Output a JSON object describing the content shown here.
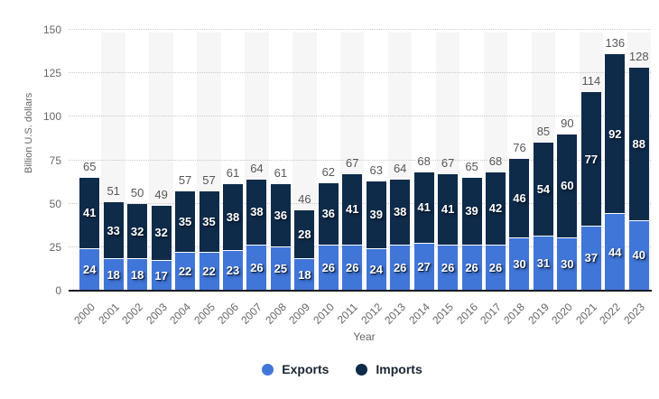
{
  "chart_data": {
    "type": "bar",
    "stacked": true,
    "title": "",
    "xlabel": "Year",
    "ylabel": "Billion U.S. dollars",
    "ylim": [
      0,
      150
    ],
    "yticks": [
      0,
      25,
      50,
      75,
      100,
      125,
      150
    ],
    "grid": "dotted horizontal",
    "legend_position": "bottom",
    "categories": [
      "2000",
      "2001",
      "2002",
      "2003",
      "2004",
      "2005",
      "2006",
      "2007",
      "2008",
      "2009",
      "2010",
      "2011",
      "2012",
      "2013",
      "2014",
      "2015",
      "2016",
      "2017",
      "2018",
      "2019",
      "2020",
      "2021",
      "2022",
      "2023"
    ],
    "series": [
      {
        "name": "Exports",
        "color": "#4176d9",
        "values": [
          24,
          18,
          18,
          17,
          22,
          22,
          23,
          26,
          25,
          18,
          26,
          26,
          24,
          26,
          27,
          26,
          26,
          26,
          30,
          31,
          30,
          37,
          44,
          40
        ]
      },
      {
        "name": "Imports",
        "color": "#0f2b4a",
        "values": [
          41,
          33,
          32,
          32,
          35,
          35,
          38,
          38,
          36,
          28,
          36,
          41,
          39,
          38,
          41,
          41,
          39,
          42,
          46,
          54,
          60,
          77,
          92,
          88
        ]
      }
    ],
    "totals": [
      65,
      51,
      50,
      49,
      57,
      57,
      61,
      64,
      61,
      46,
      62,
      67,
      63,
      64,
      68,
      67,
      65,
      68,
      76,
      85,
      90,
      114,
      136,
      128
    ]
  },
  "colors": {
    "exports": "#4176d9",
    "imports": "#0f2b4a",
    "stripe": "#f6f6f6",
    "gridline": "#c9c9c9",
    "axis_line": "#16191f",
    "axis_text": "#666666",
    "total_text": "#575757",
    "legend_text": "#1b2534"
  }
}
